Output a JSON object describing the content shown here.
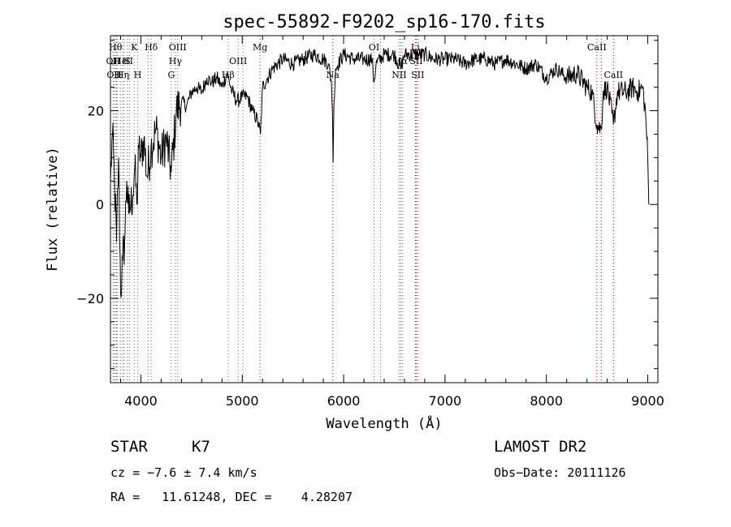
{
  "chart_data": {
    "type": "line",
    "title": "spec-55892-F9202_sp16-170.fits",
    "xlabel": "Wavelength (Å)",
    "ylabel": "Flux (relative)",
    "xlim": [
      3700,
      9100
    ],
    "ylim": [
      -38,
      36
    ],
    "xticks": [
      4000,
      5000,
      6000,
      7000,
      8000,
      9000
    ],
    "yticks": [
      -20,
      0,
      20
    ],
    "xtick_labels": [
      "4000",
      "5000",
      "6000",
      "7000",
      "8000",
      "9000"
    ],
    "ytick_labels": [
      "−20",
      "0",
      "20"
    ],
    "grid": false,
    "series": [
      {
        "x": [
          3700,
          3720,
          3740,
          3760,
          3780,
          3800,
          3820,
          3840,
          3860,
          3880,
          3900,
          3920,
          3940,
          3960,
          3980,
          4000,
          4030,
          4060,
          4100,
          4150,
          4200,
          4250,
          4300,
          4350,
          4400,
          4450,
          4500,
          4550,
          4600,
          4650,
          4700,
          4750,
          4800,
          4850,
          4900,
          4950,
          5000,
          5050,
          5100,
          5150,
          5180,
          5200,
          5250,
          5300,
          5400,
          5500,
          5600,
          5700,
          5800,
          5850,
          5880,
          5890,
          5896,
          5905,
          5920,
          6000,
          6100,
          6200,
          6280,
          6300,
          6320,
          6400,
          6500,
          6563,
          6600,
          6700,
          6800,
          6900,
          7000,
          7100,
          7200,
          7300,
          7400,
          7500,
          7600,
          7700,
          7800,
          7900,
          8000,
          8100,
          8200,
          8300,
          8400,
          8450,
          8498,
          8542,
          8560,
          8600,
          8662,
          8700,
          8800,
          8850,
          8900,
          8950,
          8980,
          9000,
          9010
        ],
        "y": [
          5,
          15,
          5,
          -8,
          10,
          -19,
          -12,
          -8,
          5,
          -2,
          0,
          2,
          8,
          0,
          12,
          10,
          14,
          6,
          12,
          16,
          10,
          14,
          7,
          20,
          22,
          21,
          24,
          25,
          24,
          27,
          26,
          27,
          25,
          28,
          24,
          22,
          23,
          23,
          20,
          18,
          15,
          25,
          27,
          29,
          31,
          30,
          31,
          32,
          31,
          30,
          26,
          20,
          9,
          22,
          29,
          32,
          31,
          31,
          31,
          26,
          30,
          32,
          32,
          29,
          32,
          32,
          32,
          31,
          31,
          31,
          30,
          31,
          31,
          30,
          31,
          30,
          29,
          30,
          27,
          29,
          27,
          28,
          25,
          24,
          17,
          16,
          24,
          25,
          17,
          24,
          24,
          25,
          24,
          25,
          19,
          10,
          0
        ]
      }
    ],
    "lines": [
      {
        "x": 3727,
        "color": "#666666",
        "row": "upper",
        "label": "OII"
      },
      {
        "x": 3734,
        "color": "#666666",
        "row": "lower",
        "label": "OII"
      },
      {
        "x": 3750,
        "color": "#666666",
        "row": "top",
        "label": "Hθ"
      },
      {
        "x": 3760,
        "color": "#666666",
        "row": "upper",
        "label": "H"
      },
      {
        "x": 3771,
        "color": "#666666",
        "row": "lower",
        "label": "H"
      },
      {
        "x": 3798,
        "color": "#666666",
        "row": "upper",
        "label": "He"
      },
      {
        "x": 3820,
        "color": "#666666",
        "row": "lower",
        "label": "Hη"
      },
      {
        "x": 3835,
        "color": "#666666",
        "row": "upper",
        "label": "I"
      },
      {
        "x": 3869,
        "color": "#666666",
        "row": "upper",
        "label": "S"
      },
      {
        "x": 3889,
        "color": "#666666",
        "row": "upper",
        "label": "II"
      },
      {
        "x": 3934,
        "color": "#666666",
        "row": "top",
        "label": "K"
      },
      {
        "x": 3969,
        "color": "#666666",
        "row": "lower",
        "label": "H"
      },
      {
        "x": 4072,
        "color": "#666666",
        "row": "upper",
        "label": ""
      },
      {
        "x": 4102,
        "color": "#666666",
        "row": "top",
        "label": "Hδ"
      },
      {
        "x": 4300,
        "color": "#666666",
        "row": "lower",
        "label": "G"
      },
      {
        "x": 4340,
        "color": "#666666",
        "row": "upper",
        "label": "Hγ"
      },
      {
        "x": 4363,
        "color": "#666666",
        "row": "top",
        "label": "OIII"
      },
      {
        "x": 4861,
        "color": "#666666",
        "row": "lower",
        "label": "Hβ"
      },
      {
        "x": 4959,
        "color": "#666666",
        "row": "upper",
        "label": "OIII"
      },
      {
        "x": 5007,
        "color": "#666666",
        "row": "",
        "label": ""
      },
      {
        "x": 5175,
        "color": "#cc0000",
        "row": "top",
        "label": "Mg"
      },
      {
        "x": 5893,
        "color": "#cc0000",
        "row": "lower",
        "label": "Na"
      },
      {
        "x": 6300,
        "color": "#666666",
        "row": "top",
        "label": "OI"
      },
      {
        "x": 6364,
        "color": "#666666",
        "row": "",
        "label": ""
      },
      {
        "x": 6548,
        "color": "#666666",
        "row": "lower",
        "label": "NII"
      },
      {
        "x": 6563,
        "color": "#cc0000",
        "row": "upper",
        "label": "Hα"
      },
      {
        "x": 6583,
        "color": "#666666",
        "row": "",
        "label": ""
      },
      {
        "x": 6707,
        "color": "#cc0000",
        "row": "top",
        "label": "Li"
      },
      {
        "x": 6716,
        "color": "#cc0000",
        "row": "upper",
        "label": "SII"
      },
      {
        "x": 6731,
        "color": "#cc0000",
        "row": "lower",
        "label": "SII"
      },
      {
        "x": 8498,
        "color": "#cc0000",
        "row": "top",
        "label": "CaII"
      },
      {
        "x": 8542,
        "color": "#cc0000",
        "row": "",
        "label": ""
      },
      {
        "x": 8662,
        "color": "#cc0000",
        "row": "lower",
        "label": "CaII"
      }
    ]
  },
  "info": {
    "object_class": "STAR",
    "subclass": "K7",
    "survey": "LAMOST DR2",
    "cz": "cz = −7.6 ± 7.4 km/s",
    "obs_date": "Obs−Date: 20111126",
    "coords": "RA =   11.61248, DEC =    4.28207"
  }
}
